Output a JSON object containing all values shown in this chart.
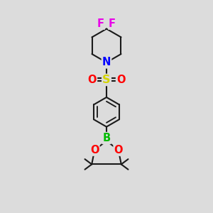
{
  "bg_color": "#dcdcdc",
  "line_color": "#1a1a1a",
  "bond_lw": 1.5,
  "atom_colors": {
    "F": "#e800e8",
    "N": "#0000ff",
    "S": "#d4d400",
    "O": "#ff0000",
    "B": "#00bb00",
    "C": "#1a1a1a"
  },
  "font_size_atom": 10.5,
  "xlim": [
    -2.2,
    2.2
  ],
  "ylim": [
    -5.2,
    5.0
  ]
}
